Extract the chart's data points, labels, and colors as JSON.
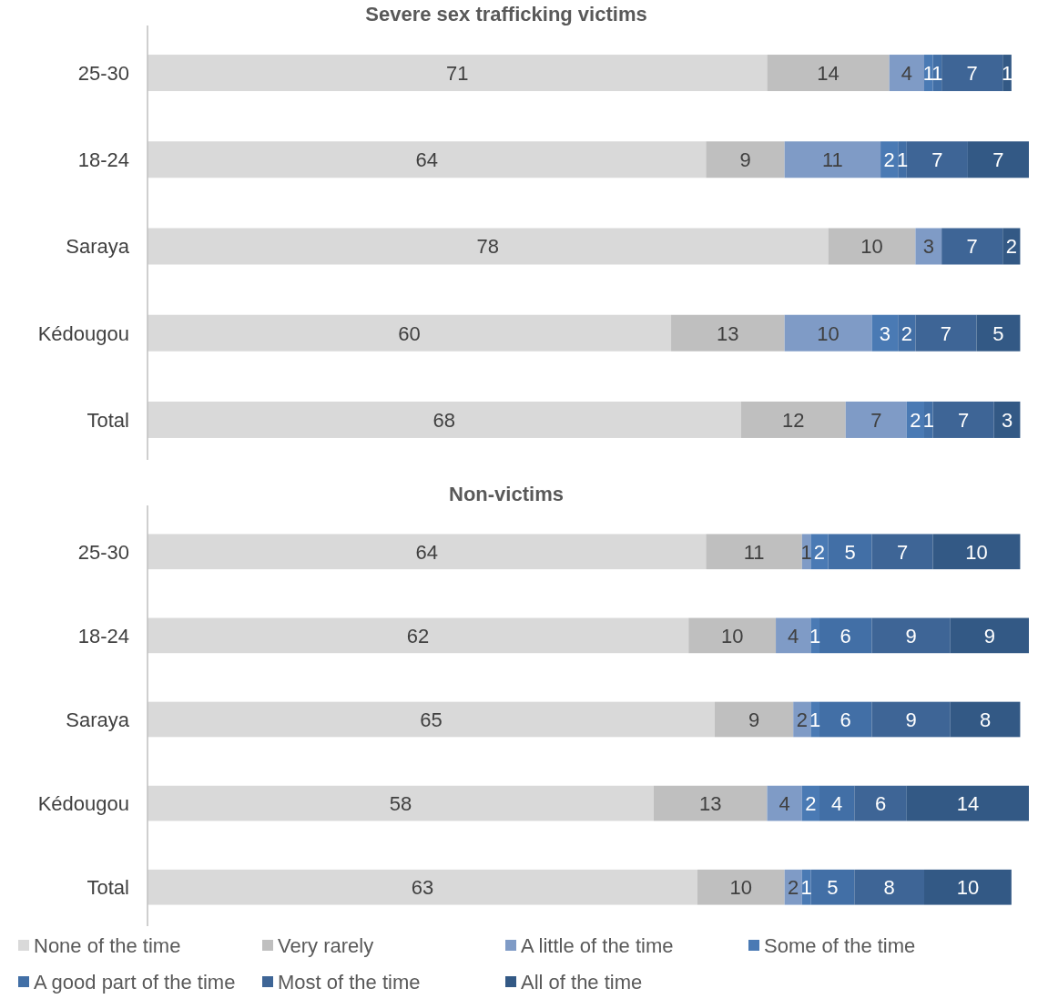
{
  "chart_data": [
    {
      "type": "bar",
      "orientation": "horizontal",
      "stacked": true,
      "data_labels": true,
      "legend": false,
      "tick_labels": "y",
      "title": "Severe sex trafficking victims",
      "categories": [
        "25-30",
        "18-24",
        "Saraya",
        "Kédougou",
        "Total"
      ],
      "series": [
        {
          "color": "#d9d9d9",
          "values": [
            71,
            64,
            78,
            60,
            68
          ]
        },
        {
          "color": "#bfbfbf",
          "values": [
            14,
            9,
            10,
            13,
            12
          ]
        },
        {
          "color": "#7f9bc6",
          "values": [
            4,
            11,
            3,
            10,
            7
          ]
        },
        {
          "color": "#4a7ab4",
          "values": [
            1,
            2,
            null,
            3,
            2
          ]
        },
        {
          "color": "#426fa6",
          "values": [
            1,
            1,
            null,
            2,
            1
          ]
        },
        {
          "color": "#3e6596",
          "values": [
            7,
            7,
            7,
            7,
            7
          ]
        },
        {
          "color": "#335985",
          "values": [
            1,
            7,
            2,
            5,
            3
          ]
        }
      ]
    },
    {
      "type": "bar",
      "orientation": "horizontal",
      "stacked": true,
      "data_labels": true,
      "legend": "bottom",
      "tick_labels": "y",
      "title": "Non-victims",
      "categories": [
        "25-30",
        "18-24",
        "Saraya",
        "Kédougou",
        "Total"
      ],
      "series": [
        {
          "name": "None of the time",
          "color": "#d9d9d9",
          "values": [
            64,
            62,
            65,
            58,
            63
          ]
        },
        {
          "name": "Very rarely",
          "color": "#bfbfbf",
          "values": [
            11,
            10,
            9,
            13,
            10
          ]
        },
        {
          "name": "A little of the time",
          "color": "#7f9bc6",
          "values": [
            1,
            4,
            2,
            4,
            2
          ]
        },
        {
          "name": "Some of the time",
          "color": "#4a7ab4",
          "values": [
            2,
            1,
            1,
            2,
            1
          ]
        },
        {
          "name": "A good part of the time",
          "color": "#426fa6",
          "values": [
            5,
            6,
            6,
            4,
            5
          ]
        },
        {
          "name": "Most of the time",
          "color": "#3e6596",
          "values": [
            7,
            9,
            9,
            6,
            8
          ]
        },
        {
          "name": "All of the time",
          "color": "#335985",
          "values": [
            10,
            9,
            8,
            14,
            10
          ]
        }
      ]
    }
  ]
}
